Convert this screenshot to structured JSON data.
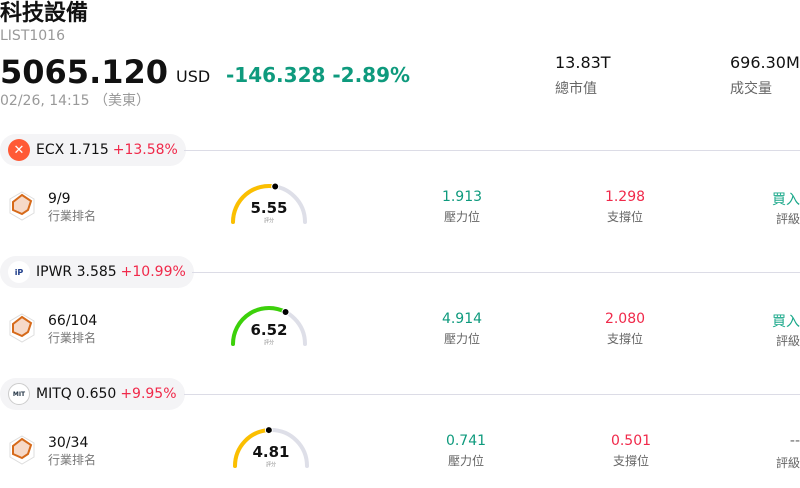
{
  "header": {
    "title": "科技設備",
    "code": "LIST1016",
    "price": "5065.120",
    "currency": "USD",
    "change": "-146.328 -2.89%",
    "time": "02/26, 14:15 （美東）",
    "stats": [
      {
        "value": "13.83T",
        "label": "總市值"
      },
      {
        "value": "696.30M",
        "label": "成交量"
      }
    ]
  },
  "colors": {
    "up": "#f0294a",
    "down": "#0e9a7d"
  },
  "rows": [
    {
      "symbol": "ECX 1.715",
      "change": "+13.58%",
      "logo": "ecx-logo",
      "rank": "9/9",
      "rank_label": "行業排名",
      "score": "5.55",
      "score_label": "評分",
      "score_value": 5.55,
      "gauge_color": "#fbbf00",
      "resistance": "1.913",
      "resistance_label": "壓力位",
      "support": "1.298",
      "support_label": "支撐位",
      "rating": "買入",
      "rating_label": "評級"
    },
    {
      "symbol": "IPWR 3.585",
      "change": "+10.99%",
      "logo": "ipwr-logo",
      "rank": "66/104",
      "rank_label": "行業排名",
      "score": "6.52",
      "score_label": "評分",
      "score_value": 6.52,
      "gauge_color": "#3cd10a",
      "resistance": "4.914",
      "resistance_label": "壓力位",
      "support": "2.080",
      "support_label": "支撐位",
      "rating": "買入",
      "rating_label": "評級"
    },
    {
      "symbol": "MITQ 0.650",
      "change": "+9.95%",
      "logo": "mitq-logo",
      "rank": "30/34",
      "rank_label": "行業排名",
      "score": "4.81",
      "score_label": "評分",
      "score_value": 4.81,
      "gauge_color": "#fbbf00",
      "resistance": "0.741",
      "resistance_label": "壓力位",
      "support": "0.501",
      "support_label": "支撐位",
      "rating": "--",
      "rating_label": "評級"
    }
  ]
}
